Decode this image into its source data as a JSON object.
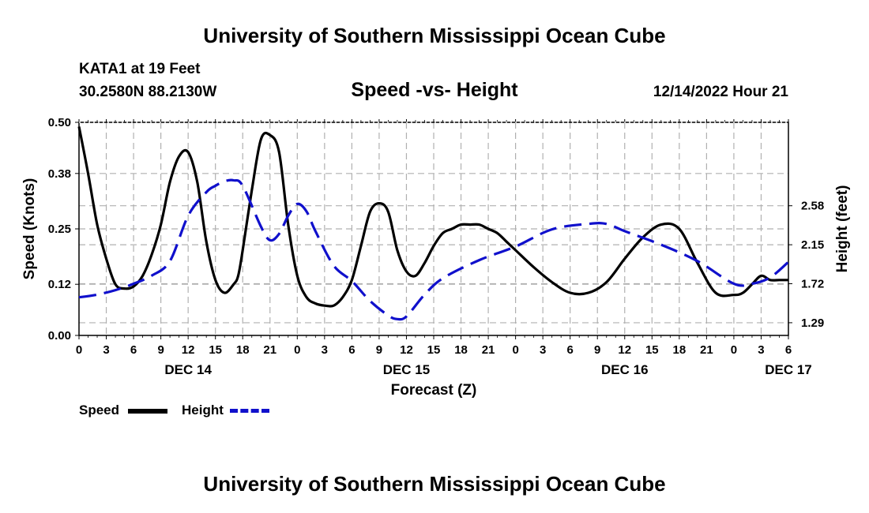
{
  "header": {
    "title": "University of Southern Mississippi Ocean Cube",
    "station": "KATA1 at 19 Feet",
    "coords": "30.2580N  88.2130W",
    "subtitle": "Speed -vs- Height",
    "datetime": "12/14/2022 Hour 21",
    "footer_title": "University of Southern Mississippi Ocean Cube"
  },
  "legend": {
    "speed_label": "Speed",
    "height_label": "Height"
  },
  "chart_data": {
    "type": "line",
    "xlabel": "Forecast (Z)",
    "ylabel_left": "Speed (Knots)",
    "ylabel_right": "Height (feet)",
    "x_hours_range": [
      0,
      78
    ],
    "x_tick_labels": [
      "0",
      "3",
      "6",
      "9",
      "12",
      "15",
      "18",
      "21",
      "0",
      "3",
      "6",
      "9",
      "12",
      "15",
      "18",
      "21",
      "0",
      "3",
      "6",
      "9",
      "12",
      "15",
      "18",
      "21",
      "0",
      "3",
      "6"
    ],
    "date_labels": [
      {
        "label": "DEC 14",
        "hour": 12
      },
      {
        "label": "DEC 15",
        "hour": 36
      },
      {
        "label": "DEC 16",
        "hour": 60
      },
      {
        "label": "DEC 17",
        "hour": 78
      }
    ],
    "ylim_left": [
      0,
      0.5
    ],
    "y_ticks_left": [
      "0.00",
      "0.12",
      "0.25",
      "0.38",
      "0.50"
    ],
    "ylim_right": [
      1.15,
      3.5
    ],
    "y_ticks_right": [
      "1.29",
      "1.72",
      "2.15",
      "2.58"
    ],
    "grid": true,
    "colors": {
      "speed": "#000000",
      "height": "#1010cc",
      "grid": "#b0b0b0"
    },
    "series": [
      {
        "name": "Speed",
        "axis": "left",
        "x": [
          0,
          1,
          2,
          3,
          4,
          5,
          6,
          7,
          8,
          9,
          10,
          11,
          12,
          13,
          14,
          15,
          16,
          17,
          17.5,
          18,
          19,
          20,
          21,
          22,
          23,
          24,
          25,
          26,
          27,
          28,
          29,
          30,
          31,
          32,
          33,
          34,
          35,
          36,
          37,
          38,
          39,
          40,
          41,
          42,
          43,
          44,
          45,
          46,
          47,
          48,
          50,
          52,
          54,
          56,
          58,
          60,
          62,
          64,
          66,
          68,
          70,
          72,
          73,
          74,
          75,
          76,
          77,
          78
        ],
        "values": [
          0.49,
          0.38,
          0.26,
          0.18,
          0.12,
          0.11,
          0.115,
          0.14,
          0.19,
          0.26,
          0.36,
          0.42,
          0.43,
          0.36,
          0.22,
          0.13,
          0.1,
          0.12,
          0.14,
          0.2,
          0.34,
          0.46,
          0.47,
          0.43,
          0.26,
          0.14,
          0.09,
          0.075,
          0.07,
          0.07,
          0.09,
          0.13,
          0.21,
          0.29,
          0.31,
          0.29,
          0.2,
          0.15,
          0.14,
          0.17,
          0.21,
          0.24,
          0.25,
          0.26,
          0.26,
          0.26,
          0.25,
          0.24,
          0.22,
          0.2,
          0.16,
          0.125,
          0.1,
          0.1,
          0.125,
          0.18,
          0.23,
          0.26,
          0.25,
          0.17,
          0.1,
          0.095,
          0.1,
          0.12,
          0.14,
          0.13,
          0.13,
          0.13
        ]
      },
      {
        "name": "Height",
        "axis": "right",
        "x": [
          0,
          2,
          4,
          6,
          8,
          10,
          12,
          14,
          15,
          16,
          17,
          18,
          20,
          21,
          22,
          23,
          24,
          25,
          26,
          28,
          30,
          32,
          34,
          35,
          36,
          38,
          40,
          44,
          48,
          52,
          56,
          58,
          60,
          64,
          68,
          72,
          74,
          76,
          78
        ],
        "values": [
          1.57,
          1.6,
          1.65,
          1.72,
          1.81,
          1.97,
          2.47,
          2.73,
          2.8,
          2.85,
          2.86,
          2.8,
          2.35,
          2.2,
          2.27,
          2.47,
          2.6,
          2.52,
          2.3,
          1.92,
          1.75,
          1.53,
          1.37,
          1.33,
          1.36,
          1.6,
          1.78,
          1.98,
          2.13,
          2.32,
          2.38,
          2.38,
          2.3,
          2.15,
          1.97,
          1.72,
          1.72,
          1.79,
          1.96
        ]
      }
    ]
  }
}
